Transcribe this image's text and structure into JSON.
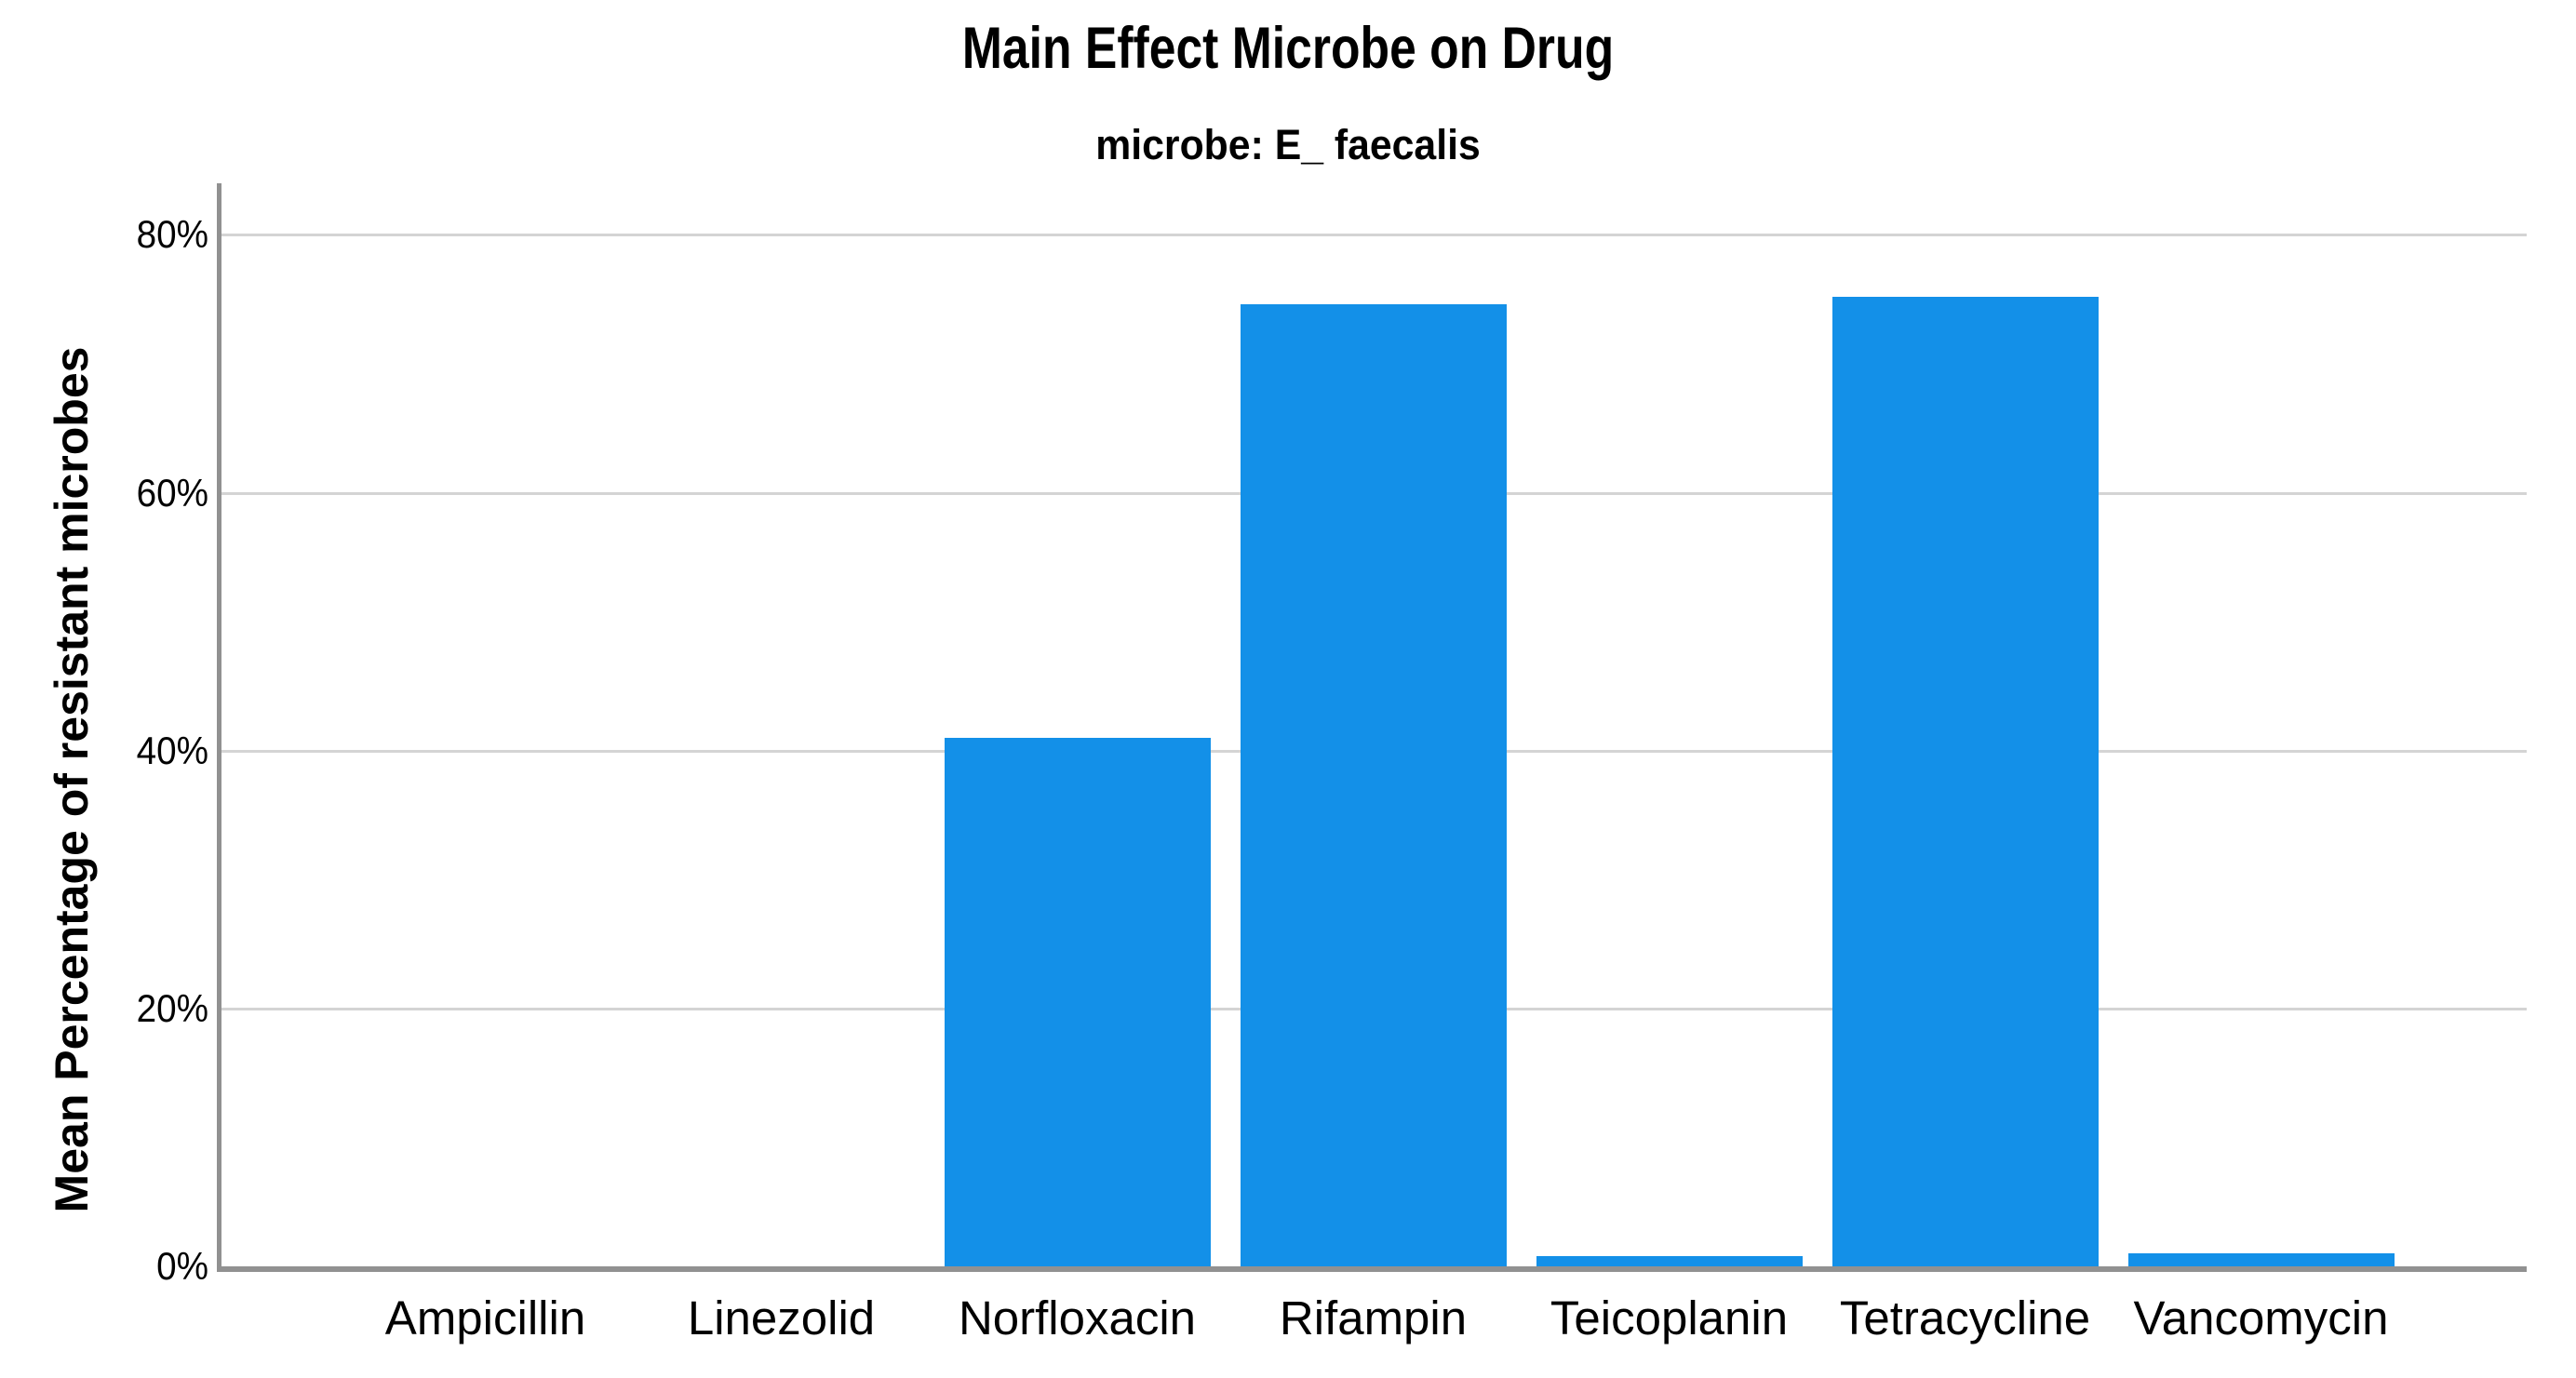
{
  "header": {
    "title": "Main Effect Microbe on Drug",
    "subtitle": "microbe: E_ faecalis"
  },
  "colors": {
    "bar": "#1390e8",
    "axis_line": "#919191",
    "gridline": "#d4d4d4",
    "text": "#000000",
    "background": "#ffffff"
  },
  "chart_data": {
    "type": "bar",
    "title": "Main Effect Microbe on Drug",
    "subtitle": "microbe: E_ faecalis",
    "xlabel": "",
    "ylabel": "Mean Percentage of resistant microbes",
    "categories": [
      "Ampicillin",
      "Linezolid",
      "Norfloxacin",
      "Rifampin",
      "Teicoplanin",
      "Tetracycline",
      "Vancomycin"
    ],
    "values": [
      0,
      0,
      41,
      74.6,
      0.8,
      75.2,
      1.0
    ],
    "y_ticks": [
      0,
      20,
      40,
      60,
      80
    ],
    "y_tick_labels": [
      "0%",
      "20%",
      "40%",
      "60%",
      "80%"
    ],
    "ylim": [
      0,
      84
    ],
    "grid": "horizontal-only",
    "legend": "none",
    "bar_color": "#1390e8"
  }
}
